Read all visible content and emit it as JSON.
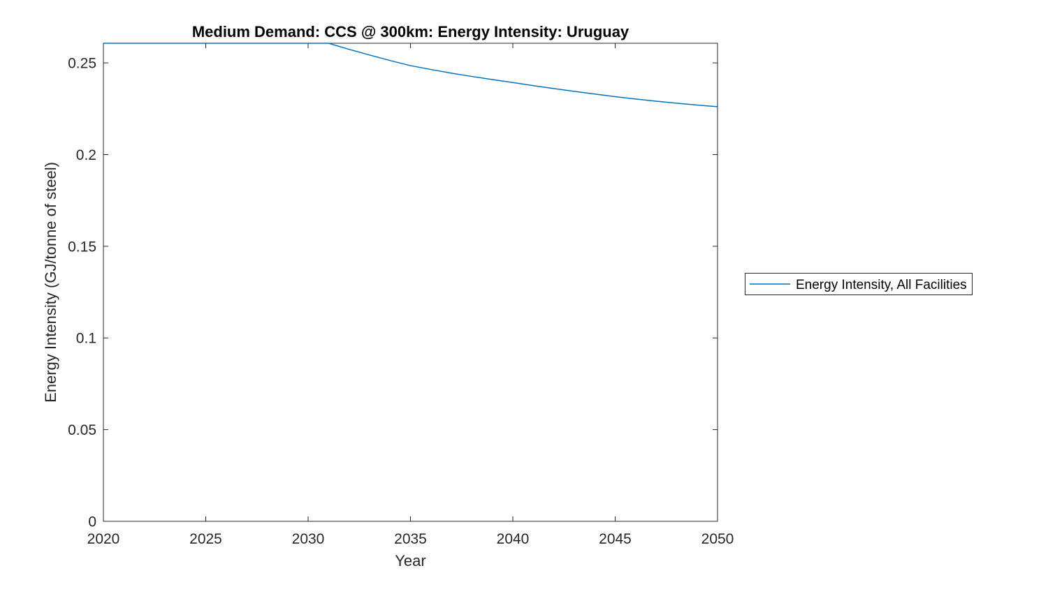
{
  "chart_data": {
    "type": "line",
    "title": "Medium Demand: CCS @ 300km: Energy Intensity: Uruguay",
    "xlabel": "Year",
    "ylabel": "Energy Intensity (GJ/tonne of steel)",
    "xlim": [
      2020,
      2050
    ],
    "ylim": [
      0,
      0.2607
    ],
    "xticks": [
      2020,
      2025,
      2030,
      2035,
      2040,
      2045,
      2050
    ],
    "xtick_labels": [
      "2020",
      "2025",
      "2030",
      "2035",
      "2040",
      "2045",
      "2050"
    ],
    "yticks": [
      0,
      0.05,
      0.1,
      0.15,
      0.2,
      0.25
    ],
    "ytick_labels": [
      "0",
      "0.05",
      "0.1",
      "0.15",
      "0.2",
      "0.25"
    ],
    "grid": false,
    "box": true,
    "tick_direction": "in",
    "legend": {
      "position": "outside-right",
      "border": true,
      "entries": [
        {
          "label": "Energy Intensity, All Facilities",
          "color": "#0072BD"
        }
      ]
    },
    "series": [
      {
        "name": "Energy Intensity, All Facilities",
        "color": "#0072BD",
        "x": [
          2020,
          2021,
          2022,
          2023,
          2024,
          2025,
          2026,
          2027,
          2028,
          2029,
          2030,
          2031,
          2032,
          2033,
          2034,
          2035,
          2036,
          2037,
          2038,
          2039,
          2040,
          2041,
          2042,
          2043,
          2044,
          2045,
          2046,
          2047,
          2048,
          2049,
          2050
        ],
        "y": [
          0.2607,
          0.2607,
          0.2607,
          0.2607,
          0.2607,
          0.2607,
          0.2607,
          0.2607,
          0.2607,
          0.2607,
          0.2607,
          0.2607,
          0.2574,
          0.2543,
          0.2513,
          0.2485,
          0.2464,
          0.2444,
          0.2426,
          0.2409,
          0.2393,
          0.2376,
          0.236,
          0.2345,
          0.233,
          0.2316,
          0.2303,
          0.2291,
          0.228,
          0.227,
          0.2261
        ]
      }
    ],
    "colors": {
      "axis": "#262626",
      "tick_label": "#262626",
      "title": "#000000",
      "line": "#0072BD",
      "background": "#ffffff"
    }
  }
}
